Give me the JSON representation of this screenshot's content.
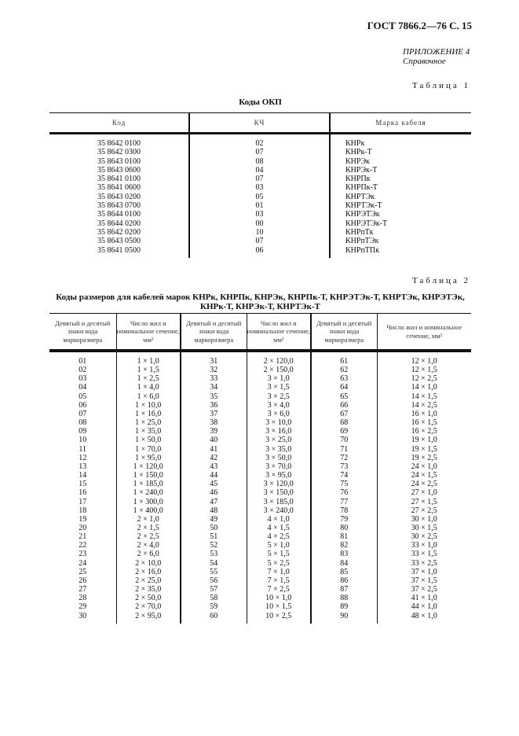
{
  "header": "ГОСТ 7866.2—76 С. 15",
  "appendix": {
    "title": "ПРИЛОЖЕНИЕ 4",
    "subtitle": "Справочное"
  },
  "table1": {
    "label": "Таблица 1",
    "title": "Коды ОКП",
    "columns": [
      "Код",
      "КЧ",
      "Марка кабеля"
    ],
    "rows": [
      [
        "35 8642 0100",
        "02",
        "КНРк"
      ],
      [
        "35 8642 0300",
        "07",
        "КНРк-Т"
      ],
      [
        "35 8643 0100",
        "08",
        "КНРЭк"
      ],
      [
        "35 8643 0600",
        "04",
        "КНРЭк-Т"
      ],
      [
        "35 8641 0100",
        "07",
        "КНРПк"
      ],
      [
        "35 8641 0600",
        "03",
        "КНРПк-Т"
      ],
      [
        "35 8643 0200",
        "05",
        "КНРТЭк"
      ],
      [
        "35 8643 0700",
        "01",
        "КНРТЭк-Т"
      ],
      [
        "35 8644 0100",
        "03",
        "КНРЭТЭк"
      ],
      [
        "35 8644 0200",
        "00",
        "КНРЭТЭк-Т"
      ],
      [
        "35 8642 0200",
        "10",
        "КНРпТк"
      ],
      [
        "35 8643 0500",
        "07",
        "КНРпТЭк"
      ],
      [
        "35 8641 0500",
        "06",
        "КНРпТПк"
      ]
    ]
  },
  "table2": {
    "label": "Таблица 2",
    "title": "Коды размеров для кабелей марок КНРк, КНРПк, КНРЭк, КНРПк-Т, КНРЭТЭк-Т, КНРТЭк, КНРЭТЭк, КНРк-Т, КНРЭк-Т, КНРТЭк-Т",
    "columns": [
      "Девятый и десятый знаки кода маркоразмера",
      "Число жил и номинальное сечение, мм²",
      "Девятый и десятый знаки кода маркоразмера",
      "Число жил и номинальное сечение, мм²",
      "Девятый и десятый знаки кода маркоразмера",
      "Число жил и номинальное сечение, мм²"
    ],
    "rows": [
      [
        "01",
        "1 × 1,0",
        "31",
        "2 × 120,0",
        "61",
        "12 × 1,0"
      ],
      [
        "02",
        "1 × 1,5",
        "32",
        "2 × 150,0",
        "62",
        "12 × 1,5"
      ],
      [
        "03",
        "1 × 2,5",
        "33",
        "3 × 1,0",
        "63",
        "12 × 2,5"
      ],
      [
        "04",
        "1 × 4,0",
        "34",
        "3 × 1,5",
        "64",
        "14 × 1,0"
      ],
      [
        "05",
        "1 × 6,0",
        "35",
        "3 × 2,5",
        "65",
        "14 × 1,5"
      ],
      [
        "06",
        "1 × 10,0",
        "36",
        "3 × 4,0",
        "66",
        "14 × 2,5"
      ],
      [
        "07",
        "1 × 16,0",
        "37",
        "3 × 6,0",
        "67",
        "16 × 1,0"
      ],
      [
        "08",
        "1 × 25,0",
        "38",
        "3 × 10,0",
        "68",
        "16 × 1,5"
      ],
      [
        "09",
        "1 × 35,0",
        "39",
        "3 × 16,0",
        "69",
        "16 × 2,5"
      ],
      [
        "10",
        "1 × 50,0",
        "40",
        "3 × 25,0",
        "70",
        "19 × 1,0"
      ],
      [
        "11",
        "1 × 70,0",
        "41",
        "3 × 35,0",
        "71",
        "19 × 1,5"
      ],
      [
        "12",
        "1 × 95,0",
        "42",
        "3 × 50,0",
        "72",
        "19 × 2,5"
      ],
      [
        "13",
        "1 × 120,0",
        "43",
        "3 × 70,0",
        "73",
        "24 × 1,0"
      ],
      [
        "14",
        "1 × 150,0",
        "44",
        "3 × 95,0",
        "74",
        "24 × 1,5"
      ],
      [
        "15",
        "1 × 185,0",
        "45",
        "3 × 120,0",
        "75",
        "24 × 2,5"
      ],
      [
        "16",
        "1 × 240,0",
        "46",
        "3 × 150,0",
        "76",
        "27 × 1,0"
      ],
      [
        "17",
        "1 × 300,0",
        "47",
        "3 × 185,0",
        "77",
        "27 × 1,5"
      ],
      [
        "18",
        "1 × 400,0",
        "48",
        "3 × 240,0",
        "78",
        "27 × 2,5"
      ],
      [
        "19",
        "2 × 1,0",
        "49",
        "4 × 1,0",
        "79",
        "30 × 1,0"
      ],
      [
        "20",
        "2 × 1,5",
        "50",
        "4 × 1,5",
        "80",
        "30 × 1,5"
      ],
      [
        "21",
        "2 × 2,5",
        "51",
        "4 × 2,5",
        "81",
        "30 × 2,5"
      ],
      [
        "22",
        "2 × 4,0",
        "52",
        "5 × 1,0",
        "82",
        "33 × 1,0"
      ],
      [
        "23",
        "2 × 6,0",
        "53",
        "5 × 1,5",
        "83",
        "33 × 1,5"
      ],
      [
        "24",
        "2 × 10,0",
        "54",
        "5 × 2,5",
        "84",
        "33 × 2,5"
      ],
      [
        "25",
        "2 × 16,0",
        "55",
        "7 × 1,0",
        "85",
        "37 × 1,0"
      ],
      [
        "26",
        "2 × 25,0",
        "56",
        "7 × 1,5",
        "86",
        "37 × 1,5"
      ],
      [
        "27",
        "2 × 35,0",
        "57",
        "7 × 2,5",
        "87",
        "37 × 2,5"
      ],
      [
        "28",
        "2 × 50,0",
        "58",
        "10 × 1,0",
        "88",
        "41 × 1,0"
      ],
      [
        "29",
        "2 × 70,0",
        "59",
        "10 × 1,5",
        "89",
        "44 × 1,0"
      ],
      [
        "30",
        "2 × 95,0",
        "60",
        "10 × 2,5",
        "90",
        "48 × 1,0"
      ]
    ]
  }
}
